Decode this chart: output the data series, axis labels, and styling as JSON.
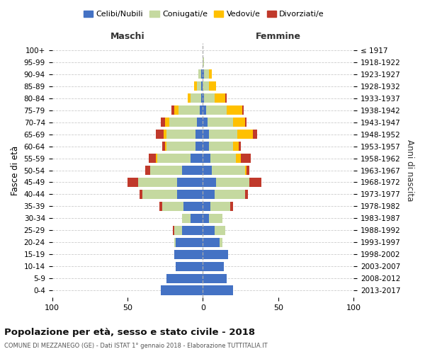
{
  "age_groups": [
    "0-4",
    "5-9",
    "10-14",
    "15-19",
    "20-24",
    "25-29",
    "30-34",
    "35-39",
    "40-44",
    "45-49",
    "50-54",
    "55-59",
    "60-64",
    "65-69",
    "70-74",
    "75-79",
    "80-84",
    "85-89",
    "90-94",
    "95-99",
    "100+"
  ],
  "birth_years": [
    "2013-2017",
    "2008-2012",
    "2003-2007",
    "1998-2002",
    "1993-1997",
    "1988-1992",
    "1983-1987",
    "1978-1982",
    "1973-1977",
    "1968-1972",
    "1963-1967",
    "1958-1962",
    "1953-1957",
    "1948-1952",
    "1943-1947",
    "1938-1942",
    "1933-1937",
    "1928-1932",
    "1923-1927",
    "1918-1922",
    "≤ 1917"
  ],
  "maschi": {
    "celibi": [
      28,
      24,
      18,
      19,
      18,
      14,
      8,
      13,
      17,
      17,
      14,
      8,
      5,
      5,
      4,
      2,
      1,
      1,
      1,
      0,
      0
    ],
    "coniugati": [
      0,
      0,
      0,
      0,
      1,
      5,
      6,
      14,
      23,
      26,
      21,
      22,
      19,
      19,
      18,
      14,
      7,
      3,
      2,
      0,
      0
    ],
    "vedovi": [
      0,
      0,
      0,
      0,
      0,
      0,
      0,
      0,
      0,
      0,
      0,
      1,
      1,
      2,
      3,
      3,
      2,
      2,
      0,
      0,
      0
    ],
    "divorziati": [
      0,
      0,
      0,
      0,
      0,
      1,
      0,
      2,
      2,
      7,
      3,
      5,
      2,
      5,
      3,
      2,
      0,
      0,
      0,
      0,
      0
    ]
  },
  "femmine": {
    "nubili": [
      20,
      16,
      14,
      17,
      11,
      8,
      4,
      5,
      8,
      9,
      6,
      5,
      4,
      4,
      3,
      2,
      1,
      0,
      1,
      0,
      0
    ],
    "coniugate": [
      0,
      0,
      0,
      0,
      2,
      7,
      9,
      13,
      20,
      22,
      22,
      17,
      16,
      19,
      17,
      14,
      7,
      4,
      3,
      1,
      0
    ],
    "vedove": [
      0,
      0,
      0,
      0,
      0,
      0,
      0,
      0,
      0,
      0,
      1,
      3,
      4,
      10,
      8,
      10,
      7,
      5,
      2,
      0,
      0
    ],
    "divorziate": [
      0,
      0,
      0,
      0,
      0,
      0,
      0,
      2,
      2,
      8,
      2,
      7,
      1,
      3,
      1,
      1,
      1,
      0,
      0,
      0,
      0
    ]
  },
  "colors": {
    "celibi": "#4472c4",
    "coniugati": "#c5d9a0",
    "vedovi": "#ffc000",
    "divorziati": "#c0392b"
  },
  "xlim": 100,
  "title": "Popolazione per età, sesso e stato civile - 2018",
  "subtitle": "COMUNE DI MEZZANEGO (GE) - Dati ISTAT 1° gennaio 2018 - Elaborazione TUTTITALIA.IT",
  "ylabel": "Fasce di età",
  "ylabel_right": "Anni di nascita",
  "xlabel_maschi": "Maschi",
  "xlabel_femmine": "Femmine",
  "legend_labels": [
    "Celibi/Nubili",
    "Coniugati/e",
    "Vedovi/e",
    "Divorziati/e"
  ],
  "background_color": "#ffffff",
  "grid_color": "#cccccc"
}
